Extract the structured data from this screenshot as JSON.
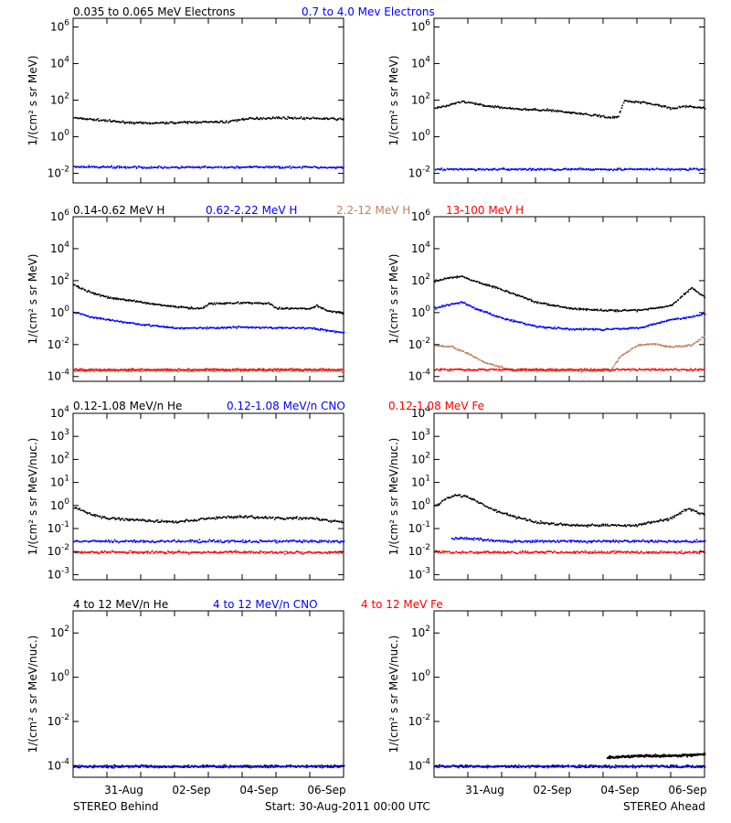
{
  "rows": [
    {
      "labels": [
        {
          "text": "0.035 to 0.065 MeV Electrons",
          "color": "#000000"
        },
        {
          "text": "0.7 to 4.0 Mev Electrons",
          "color": "#0000ff"
        }
      ],
      "ylabel": "1/(cm² s sr MeV)"
    },
    {
      "labels": [
        {
          "text": "0.14-0.62 MeV H",
          "color": "#000000"
        },
        {
          "text": "0.62-2.22 MeV H",
          "color": "#0000ff"
        },
        {
          "text": "2.2-12 MeV H",
          "color": "#c08060"
        },
        {
          "text": "13-100 MeV H",
          "color": "#ff0000"
        }
      ],
      "ylabel": "1/(cm² s sr MeV)"
    },
    {
      "labels": [
        {
          "text": "0.12-1.08 MeV/n He",
          "color": "#000000"
        },
        {
          "text": "0.12-1.08 MeV/n CNO",
          "color": "#0000ff"
        },
        {
          "text": "0.12-1.08 MeV Fe",
          "color": "#ff0000"
        }
      ],
      "ylabel": "1/(cm² s sr MeV/nuc.)"
    },
    {
      "labels": [
        {
          "text": "4 to 12 MeV/n He",
          "color": "#000000"
        },
        {
          "text": "4 to 12 MeV/n CNO",
          "color": "#0000ff"
        },
        {
          "text": "4 to 12 MeV Fe",
          "color": "#ff0000"
        }
      ],
      "ylabel": "1/(cm² s sr MeV/nuc.)"
    }
  ],
  "footer": {
    "left": "STEREO Behind",
    "center": "Start: 30-Aug-2011 00:00 UTC",
    "right": "STEREO Ahead"
  },
  "chart_data": [
    {
      "type": "scatter",
      "panel": "electrons",
      "spacecraft": "STEREO Behind",
      "ylog": true,
      "ylim": [
        0.003,
        3000000
      ],
      "ytick_exponents": [
        -2,
        0,
        2,
        4,
        6
      ],
      "xlim": [
        0,
        8
      ],
      "xtick_labels": [
        "31-Aug",
        "02-Sep",
        "04-Sep",
        "06-Sep"
      ],
      "xtick_days": [
        1.5,
        3.5,
        5.5,
        7.5
      ],
      "series": [
        {
          "color": "#000000",
          "points": [
            [
              0,
              12
            ],
            [
              0.5,
              10
            ],
            [
              1,
              8
            ],
            [
              2,
              6
            ],
            [
              3,
              6.5
            ],
            [
              4,
              7
            ],
            [
              4.5,
              7
            ],
            [
              5,
              10
            ],
            [
              6,
              12
            ],
            [
              7,
              11
            ],
            [
              8,
              10
            ]
          ]
        },
        {
          "color": "#0000ff",
          "points": [
            [
              0,
              0.025
            ],
            [
              2,
              0.023
            ],
            [
              4,
              0.023
            ],
            [
              6,
              0.024
            ],
            [
              8,
              0.023
            ]
          ]
        }
      ]
    },
    {
      "type": "scatter",
      "panel": "electrons",
      "spacecraft": "STEREO Ahead",
      "ylog": true,
      "ylim": [
        0.003,
        3000000
      ],
      "ytick_exponents": [
        -2,
        0,
        2,
        4,
        6
      ],
      "xlim": [
        0,
        8
      ],
      "xtick_labels": [
        "31-Aug",
        "02-Sep",
        "04-Sep",
        "06-Sep"
      ],
      "xtick_days": [
        1.5,
        3.5,
        5.5,
        7.5
      ],
      "series": [
        {
          "color": "#000000",
          "points": [
            [
              0,
              40
            ],
            [
              0.3,
              50
            ],
            [
              0.8,
              90
            ],
            [
              1.5,
              55
            ],
            [
              2.5,
              35
            ],
            [
              3.5,
              30
            ],
            [
              4.5,
              18
            ],
            [
              5.3,
              12
            ],
            [
              5.45,
              15
            ],
            [
              5.6,
              100
            ],
            [
              6,
              90
            ],
            [
              6.5,
              65
            ],
            [
              7,
              40
            ],
            [
              7.5,
              50
            ],
            [
              8,
              40
            ]
          ]
        },
        {
          "color": "#0000ff",
          "points": [
            [
              0,
              0.018
            ],
            [
              2,
              0.018
            ],
            [
              4,
              0.018
            ],
            [
              6,
              0.018
            ],
            [
              8,
              0.018
            ]
          ]
        }
      ]
    },
    {
      "type": "scatter",
      "panel": "protons",
      "spacecraft": "STEREO Behind",
      "ylog": true,
      "ylim": [
        5e-05,
        1000000
      ],
      "ytick_exponents": [
        -4,
        -2,
        0,
        2,
        4,
        6
      ],
      "xlim": [
        0,
        8
      ],
      "xtick_labels": [
        "31-Aug",
        "02-Sep",
        "04-Sep",
        "06-Sep"
      ],
      "xtick_days": [
        1.5,
        3.5,
        5.5,
        7.5
      ],
      "series": [
        {
          "color": "#000000",
          "points": [
            [
              0,
              60
            ],
            [
              0.5,
              20
            ],
            [
              1,
              10
            ],
            [
              2,
              5
            ],
            [
              3,
              2.5
            ],
            [
              3.8,
              2.0
            ],
            [
              4,
              4
            ],
            [
              5,
              4.5
            ],
            [
              5.8,
              4
            ],
            [
              6,
              2.0
            ],
            [
              7,
              2.0
            ],
            [
              7.2,
              3
            ],
            [
              7.5,
              1.5
            ],
            [
              8,
              1.0
            ]
          ]
        },
        {
          "color": "#0000ff",
          "points": [
            [
              0,
              1.2
            ],
            [
              0.5,
              0.6
            ],
            [
              1,
              0.4
            ],
            [
              2,
              0.2
            ],
            [
              3,
              0.12
            ],
            [
              4,
              0.12
            ],
            [
              5,
              0.14
            ],
            [
              6,
              0.12
            ],
            [
              7,
              0.12
            ],
            [
              8,
              0.06
            ]
          ]
        },
        {
          "color": "#c08060",
          "points": [
            [
              0,
              0.00025
            ],
            [
              4,
              0.00025
            ],
            [
              8,
              0.00025
            ]
          ]
        },
        {
          "color": "#ff0000",
          "points": [
            [
              0,
              0.0003
            ],
            [
              2,
              0.0003
            ],
            [
              4,
              0.0003
            ],
            [
              6,
              0.0003
            ],
            [
              8,
              0.0003
            ]
          ]
        }
      ]
    },
    {
      "type": "scatter",
      "panel": "protons",
      "spacecraft": "STEREO Ahead",
      "ylog": true,
      "ylim": [
        5e-05,
        1000000
      ],
      "ytick_exponents": [
        -4,
        -2,
        0,
        2,
        4,
        6
      ],
      "xlim": [
        0,
        8
      ],
      "xtick_labels": [
        "31-Aug",
        "02-Sep",
        "04-Sep",
        "06-Sep"
      ],
      "xtick_days": [
        1.5,
        3.5,
        5.5,
        7.5
      ],
      "series": [
        {
          "color": "#000000",
          "points": [
            [
              0,
              100
            ],
            [
              0.3,
              150
            ],
            [
              0.8,
              200
            ],
            [
              1.2,
              100
            ],
            [
              2,
              30
            ],
            [
              3,
              5
            ],
            [
              4,
              2
            ],
            [
              5,
              1.5
            ],
            [
              6,
              1.5
            ],
            [
              7,
              3
            ],
            [
              7.6,
              40
            ],
            [
              8,
              10
            ]
          ]
        },
        {
          "color": "#0000ff",
          "points": [
            [
              0,
              2
            ],
            [
              0.3,
              3
            ],
            [
              0.8,
              5
            ],
            [
              1.2,
              2
            ],
            [
              2,
              0.5
            ],
            [
              3,
              0.15
            ],
            [
              4,
              0.1
            ],
            [
              5,
              0.1
            ],
            [
              6,
              0.12
            ],
            [
              7,
              0.4
            ],
            [
              7.6,
              0.6
            ],
            [
              8,
              1
            ]
          ]
        },
        {
          "color": "#c08060",
          "points": [
            [
              0,
              0.01
            ],
            [
              0.5,
              0.008
            ],
            [
              1,
              0.003
            ],
            [
              1.5,
              0.0008
            ],
            [
              2,
              0.0004
            ],
            [
              2.3,
              0.00025
            ],
            [
              5.2,
              0.00025
            ],
            [
              5.5,
              0.002
            ],
            [
              6,
              0.01
            ],
            [
              6.5,
              0.012
            ],
            [
              7,
              0.008
            ],
            [
              7.6,
              0.01
            ],
            [
              8,
              0.04
            ]
          ]
        },
        {
          "color": "#ff0000",
          "points": [
            [
              0,
              0.0003
            ],
            [
              2,
              0.0003
            ],
            [
              4,
              0.0003
            ],
            [
              6,
              0.0003
            ],
            [
              8,
              0.0003
            ]
          ]
        }
      ]
    },
    {
      "type": "scatter",
      "panel": "suprathermal ions",
      "spacecraft": "STEREO Behind",
      "ylog": true,
      "ylim": [
        0.0006,
        10000
      ],
      "ytick_exponents": [
        -3,
        -2,
        -1,
        0,
        1,
        2,
        3,
        4
      ],
      "xlim": [
        0,
        8
      ],
      "xtick_labels": [
        "31-Aug",
        "02-Sep",
        "04-Sep",
        "06-Sep"
      ],
      "xtick_days": [
        1.5,
        3.5,
        5.5,
        7.5
      ],
      "series": [
        {
          "color": "#000000",
          "points": [
            [
              0,
              0.9
            ],
            [
              0.3,
              0.6
            ],
            [
              0.6,
              0.4
            ],
            [
              1,
              0.3
            ],
            [
              2,
              0.25
            ],
            [
              3,
              0.2
            ],
            [
              4,
              0.3
            ],
            [
              5,
              0.35
            ],
            [
              6,
              0.3
            ],
            [
              7,
              0.3
            ],
            [
              8,
              0.2
            ]
          ]
        },
        {
          "color": "#0000ff",
          "points": [
            [
              0,
              0.03
            ],
            [
              2,
              0.03
            ],
            [
              4,
              0.03
            ],
            [
              6,
              0.03
            ],
            [
              8,
              0.03
            ]
          ]
        },
        {
          "color": "#ff0000",
          "points": [
            [
              0,
              0.01
            ],
            [
              2,
              0.01
            ],
            [
              4,
              0.01
            ],
            [
              6,
              0.01
            ],
            [
              8,
              0.01
            ]
          ]
        }
      ]
    },
    {
      "type": "scatter",
      "panel": "suprathermal ions",
      "spacecraft": "STEREO Ahead",
      "ylog": true,
      "ylim": [
        0.0006,
        10000
      ],
      "ytick_exponents": [
        -3,
        -2,
        -1,
        0,
        1,
        2,
        3,
        4
      ],
      "xlim": [
        0,
        8
      ],
      "xtick_labels": [
        "31-Aug",
        "02-Sep",
        "04-Sep",
        "06-Sep"
      ],
      "xtick_days": [
        1.5,
        3.5,
        5.5,
        7.5
      ],
      "series": [
        {
          "color": "#000000",
          "points": [
            [
              0,
              1.0
            ],
            [
              0.3,
              2.0
            ],
            [
              0.6,
              3.0
            ],
            [
              1,
              2.5
            ],
            [
              1.5,
              1.0
            ],
            [
              2,
              0.5
            ],
            [
              3,
              0.2
            ],
            [
              4,
              0.15
            ],
            [
              5,
              0.15
            ],
            [
              6,
              0.15
            ],
            [
              7,
              0.3
            ],
            [
              7.5,
              0.8
            ],
            [
              8,
              0.4
            ]
          ]
        },
        {
          "color": "#0000ff",
          "points": [
            [
              0.5,
              0.04
            ],
            [
              1,
              0.04
            ],
            [
              2,
              0.03
            ],
            [
              4,
              0.03
            ],
            [
              6,
              0.03
            ],
            [
              8,
              0.03
            ]
          ]
        },
        {
          "color": "#ff0000",
          "points": [
            [
              0,
              0.01
            ],
            [
              2,
              0.01
            ],
            [
              4,
              0.01
            ],
            [
              6,
              0.01
            ],
            [
              8,
              0.01
            ]
          ]
        }
      ]
    },
    {
      "type": "scatter",
      "panel": "energetic ions",
      "spacecraft": "STEREO Behind",
      "ylog": true,
      "ylim": [
        3e-05,
        1000
      ],
      "ytick_exponents": [
        -4,
        -2,
        0,
        2
      ],
      "xlim": [
        0,
        8
      ],
      "xtick_labels": [
        "31-Aug",
        "02-Sep",
        "04-Sep",
        "06-Sep"
      ],
      "xtick_days": [
        1.5,
        3.5,
        5.5,
        7.5
      ],
      "series": [
        {
          "color": "#000000",
          "points": [
            [
              0,
              0.0001
            ],
            [
              8,
              0.0001
            ]
          ]
        },
        {
          "color": "#0000ff",
          "points": [
            [
              0,
              0.0001
            ],
            [
              8,
              0.0001
            ]
          ]
        }
      ]
    },
    {
      "type": "scatter",
      "panel": "energetic ions",
      "spacecraft": "STEREO Ahead",
      "ylog": true,
      "ylim": [
        3e-05,
        1000
      ],
      "ytick_exponents": [
        -4,
        -2,
        0,
        2
      ],
      "xlim": [
        0,
        8
      ],
      "xtick_labels": [
        "31-Aug",
        "02-Sep",
        "04-Sep",
        "06-Sep"
      ],
      "xtick_days": [
        1.5,
        3.5,
        5.5,
        7.5
      ],
      "series": [
        {
          "color": "#000000",
          "points": [
            [
              0,
              0.0001
            ],
            [
              8,
              0.0001
            ]
          ]
        },
        {
          "color": "#000000",
          "points": [
            [
              5.1,
              0.00025
            ],
            [
              6,
              0.0003
            ],
            [
              7,
              0.0003
            ],
            [
              8,
              0.00035
            ]
          ]
        },
        {
          "color": "#0000ff",
          "points": [
            [
              0,
              0.0001
            ],
            [
              8,
              0.0001
            ]
          ]
        }
      ]
    }
  ]
}
